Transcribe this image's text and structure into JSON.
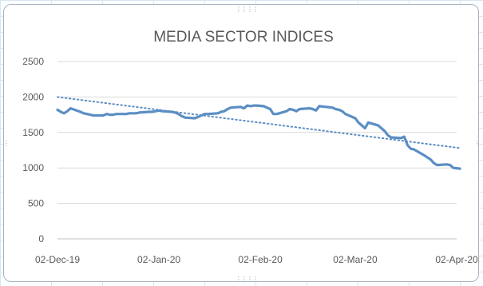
{
  "chart_data": {
    "type": "line",
    "title": "MEDIA SECTOR INDICES",
    "xlabel": "",
    "ylabel": "",
    "ylim": [
      0,
      2500
    ],
    "y_ticks": [
      0,
      500,
      1000,
      1500,
      2000,
      2500
    ],
    "x_tick_labels": [
      "02-Dec-19",
      "02-Jan-20",
      "02-Feb-20",
      "02-Mar-20",
      "02-Apr-20"
    ],
    "x_tick_dates": [
      "2019-12-02",
      "2020-01-02",
      "2020-02-02",
      "2020-03-02",
      "2020-04-02"
    ],
    "grid": "horizontal",
    "legend": "none",
    "colors": {
      "series": "#5b8ec4",
      "trendline": "#5b8ec4",
      "gridline": "#d9d9d9"
    },
    "series": [
      {
        "x": [
          "2019-12-02",
          "2019-12-03",
          "2019-12-04",
          "2019-12-05",
          "2019-12-06",
          "2019-12-09",
          "2019-12-10",
          "2019-12-11",
          "2019-12-12",
          "2019-12-13",
          "2019-12-16",
          "2019-12-17",
          "2019-12-18",
          "2019-12-19",
          "2019-12-20",
          "2019-12-23",
          "2019-12-24",
          "2019-12-26",
          "2019-12-27",
          "2019-12-30",
          "2019-12-31",
          "2020-01-01",
          "2020-01-02",
          "2020-01-03",
          "2020-01-06",
          "2020-01-07",
          "2020-01-08",
          "2020-01-09",
          "2020-01-10",
          "2020-01-13",
          "2020-01-14",
          "2020-01-15",
          "2020-01-16",
          "2020-01-17",
          "2020-01-20",
          "2020-01-21",
          "2020-01-22",
          "2020-01-23",
          "2020-01-24",
          "2020-01-27",
          "2020-01-28",
          "2020-01-29",
          "2020-01-30",
          "2020-01-31",
          "2020-02-01",
          "2020-02-03",
          "2020-02-04",
          "2020-02-05",
          "2020-02-06",
          "2020-02-07",
          "2020-02-10",
          "2020-02-11",
          "2020-02-12",
          "2020-02-13",
          "2020-02-14",
          "2020-02-17",
          "2020-02-18",
          "2020-02-19",
          "2020-02-20",
          "2020-02-24",
          "2020-02-25",
          "2020-02-26",
          "2020-02-27",
          "2020-02-28",
          "2020-03-02",
          "2020-03-03",
          "2020-03-04",
          "2020-03-05",
          "2020-03-06",
          "2020-03-09",
          "2020-03-11",
          "2020-03-12",
          "2020-03-13",
          "2020-03-16",
          "2020-03-17",
          "2020-03-18",
          "2020-03-19",
          "2020-03-20",
          "2020-03-23",
          "2020-03-24",
          "2020-03-25",
          "2020-03-26",
          "2020-03-27",
          "2020-03-30",
          "2020-03-31",
          "2020-04-01",
          "2020-04-03"
        ],
        "values": [
          1820,
          1790,
          1770,
          1800,
          1840,
          1790,
          1770,
          1760,
          1750,
          1740,
          1740,
          1760,
          1750,
          1750,
          1760,
          1760,
          1770,
          1770,
          1780,
          1790,
          1790,
          1800,
          1810,
          1800,
          1790,
          1780,
          1760,
          1730,
          1710,
          1700,
          1720,
          1740,
          1760,
          1760,
          1770,
          1790,
          1800,
          1830,
          1850,
          1860,
          1840,
          1880,
          1870,
          1880,
          1880,
          1870,
          1850,
          1830,
          1760,
          1760,
          1800,
          1830,
          1820,
          1800,
          1830,
          1840,
          1830,
          1810,
          1870,
          1850,
          1830,
          1820,
          1800,
          1760,
          1700,
          1640,
          1600,
          1560,
          1640,
          1600,
          1520,
          1460,
          1430,
          1420,
          1440,
          1320,
          1270,
          1260,
          1180,
          1150,
          1120,
          1070,
          1040,
          1050,
          1040,
          1000,
          990
        ]
      }
    ],
    "trendline": {
      "type": "linear",
      "start_value": 2000,
      "end_value": 1280
    }
  }
}
